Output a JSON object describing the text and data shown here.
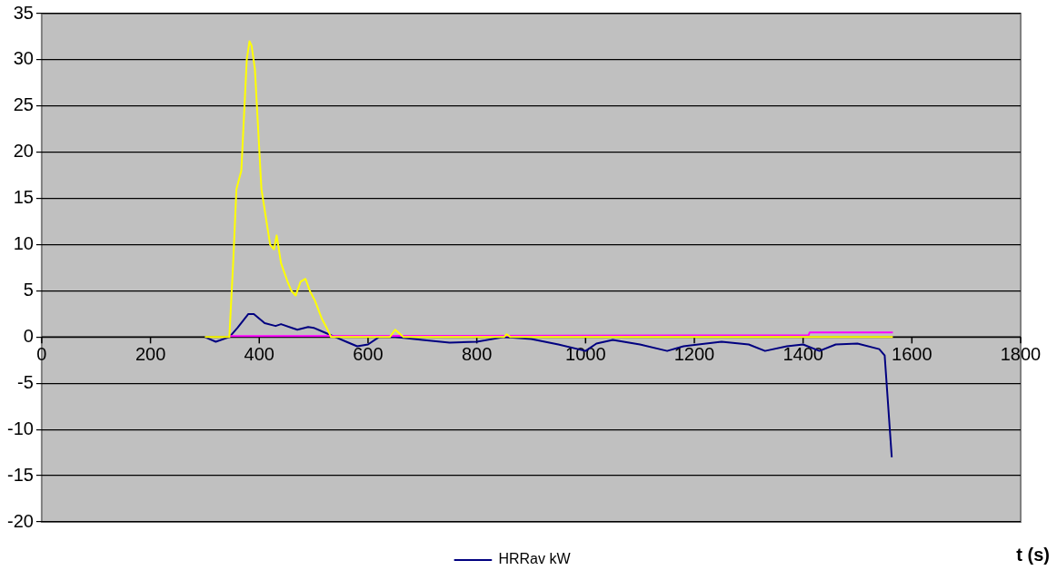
{
  "chart_data": {
    "type": "line",
    "xlabel": "t (s)",
    "xlim": [
      0,
      1800
    ],
    "xticks": [
      0,
      200,
      400,
      600,
      800,
      1000,
      1200,
      1400,
      1600,
      1800
    ],
    "ylim": [
      -20,
      35
    ],
    "yticks": [
      -20,
      -15,
      -10,
      -5,
      0,
      5,
      10,
      15,
      20,
      25,
      30,
      35
    ],
    "grid": "y",
    "legend": "bottom",
    "marker": "none",
    "line_style": "solid",
    "series": [
      {
        "color": "#ffff00",
        "x": [
          300,
          345,
          352,
          358,
          367,
          377,
          382,
          386,
          392,
          404,
          420,
          427,
          432,
          440,
          452,
          459,
          467,
          476,
          485,
          493,
          502,
          515,
          524,
          532,
          640,
          650,
          665,
          850,
          855,
          862,
          1565
        ],
        "values": [
          0,
          0,
          8,
          16,
          18,
          30,
          32,
          31.5,
          29,
          16,
          10,
          9.5,
          11,
          8,
          6,
          5,
          4.5,
          6,
          6.3,
          5,
          4,
          2,
          1,
          0,
          0,
          0.8,
          0,
          0,
          0.3,
          0,
          0
        ]
      },
      {
        "color": "#ff00ff",
        "x": [
          345,
          1410,
          1412,
          1565
        ],
        "values": [
          0.1,
          0.2,
          0.5,
          0.5
        ]
      },
      {
        "name": "HRRav kW",
        "color": "#000080",
        "x": [
          300,
          320,
          345,
          360,
          380,
          390,
          410,
          430,
          440,
          460,
          470,
          490,
          500,
          520,
          540,
          560,
          580,
          600,
          620,
          650,
          700,
          750,
          800,
          850,
          900,
          950,
          1000,
          1020,
          1050,
          1100,
          1150,
          1180,
          1250,
          1300,
          1330,
          1370,
          1400,
          1430,
          1460,
          1500,
          1540,
          1550,
          1563
        ],
        "values": [
          0,
          -0.5,
          0,
          1,
          2.5,
          2.5,
          1.5,
          1.2,
          1.4,
          1,
          0.8,
          1.1,
          1,
          0.5,
          0,
          -0.5,
          -1,
          -0.8,
          0,
          0,
          -0.3,
          -0.6,
          -0.5,
          0,
          -0.2,
          -0.8,
          -1.5,
          -0.7,
          -0.3,
          -0.8,
          -1.5,
          -1,
          -0.5,
          -0.8,
          -1.5,
          -1,
          -0.8,
          -1.5,
          -0.8,
          -0.7,
          -1.3,
          -2,
          -13
        ]
      }
    ]
  }
}
